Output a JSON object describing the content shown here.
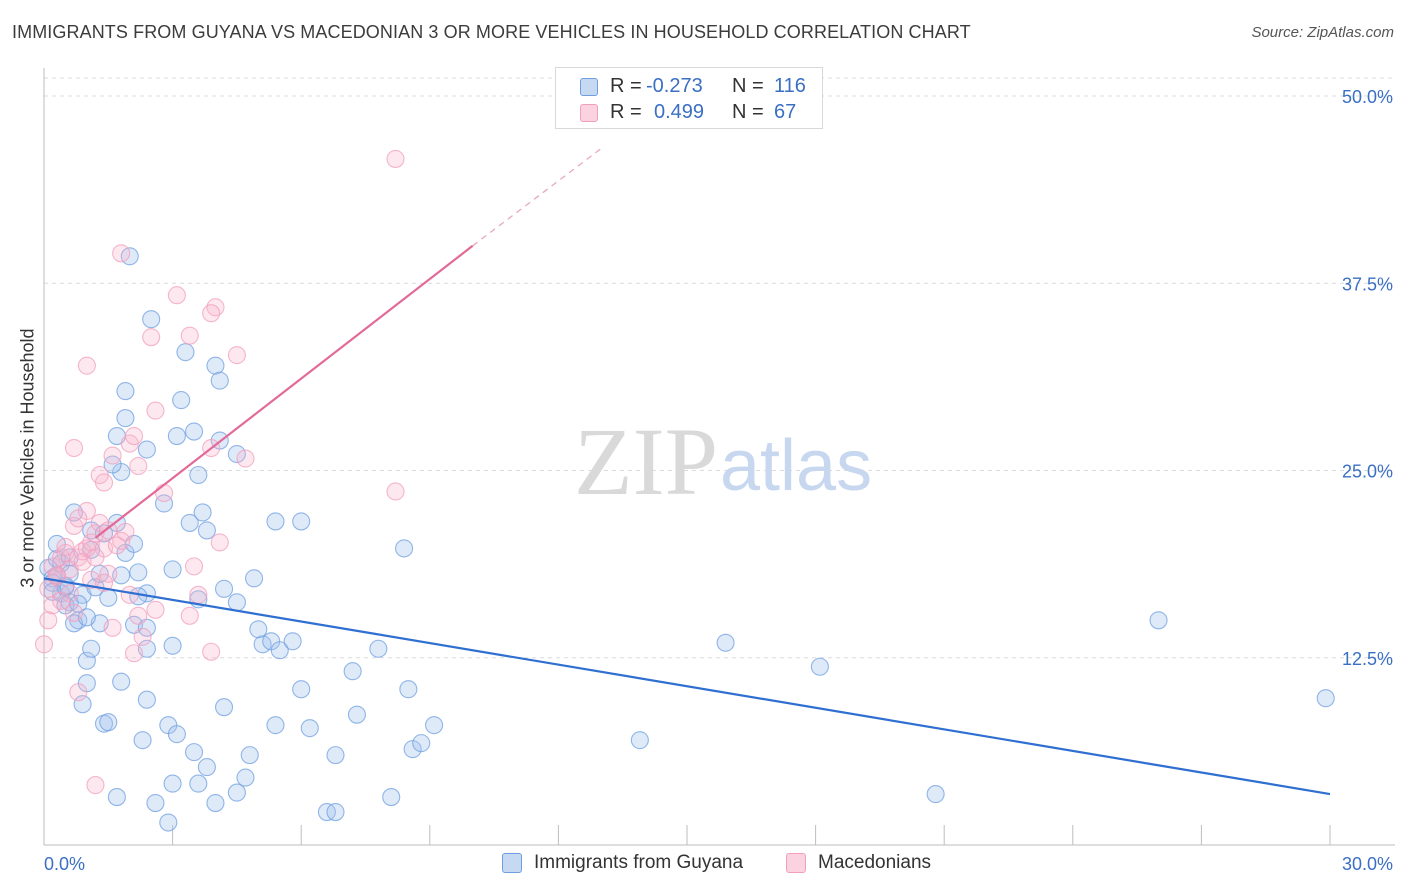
{
  "title": "IMMIGRANTS FROM GUYANA VS MACEDONIAN 3 OR MORE VEHICLES IN HOUSEHOLD CORRELATION CHART",
  "source": "Source: ZipAtlas.com",
  "watermark": {
    "zip": "ZIP",
    "atlas": "atlas"
  },
  "legend": {
    "rows": [
      {
        "r_label": "R =",
        "r_value": "-0.273",
        "n_label": "N =",
        "n_value": "116",
        "color": "#6f9fe0"
      },
      {
        "r_label": "R =",
        "r_value": "0.499",
        "n_label": "N =",
        "n_value": "67",
        "color": "#f19fbd"
      }
    ]
  },
  "bottom_legend": [
    {
      "label": "Immigrants from Guyana",
      "color": "#6f9fe0"
    },
    {
      "label": "Macedonians",
      "color": "#f19fbd"
    }
  ],
  "chart_data": {
    "type": "scatter",
    "title": "IMMIGRANTS FROM GUYANA VS MACEDONIAN 3 OR MORE VEHICLES IN HOUSEHOLD CORRELATION CHART",
    "xlabel": "",
    "ylabel": "3 or more Vehicles in Household",
    "xlim": [
      0,
      30
    ],
    "ylim": [
      0,
      50
    ],
    "x_tick_labels": [
      "0.0%",
      "30.0%"
    ],
    "y_ticks": [
      12.5,
      25.0,
      37.5,
      50.0
    ],
    "y_tick_labels": [
      "12.5%",
      "25.0%",
      "37.5%",
      "50.0%"
    ],
    "grid": true,
    "series": [
      {
        "name": "Immigrants from Guyana",
        "color": "#6f9fe0",
        "trend": {
          "x0": 0,
          "y0": 17.8,
          "x1": 30,
          "y1": 3.4
        },
        "points": [
          [
            0.1,
            18.5
          ],
          [
            0.2,
            17.8
          ],
          [
            0.3,
            18.0
          ],
          [
            0.4,
            16.8
          ],
          [
            0.5,
            17.2
          ],
          [
            0.6,
            16.2
          ],
          [
            0.2,
            17.5
          ],
          [
            0.4,
            18.8
          ],
          [
            0.6,
            18.1
          ],
          [
            0.3,
            19.1
          ],
          [
            0.7,
            22.2
          ],
          [
            0.8,
            15.0
          ],
          [
            0.9,
            16.7
          ],
          [
            0.5,
            16.0
          ],
          [
            0.7,
            14.8
          ],
          [
            1.1,
            21.0
          ],
          [
            1.2,
            17.2
          ],
          [
            1.5,
            16.5
          ],
          [
            1.7,
            21.5
          ],
          [
            1.9,
            19.5
          ],
          [
            2.1,
            20.1
          ],
          [
            2.2,
            18.2
          ],
          [
            2.4,
            16.8
          ],
          [
            1.0,
            12.3
          ],
          [
            1.1,
            13.1
          ],
          [
            1.3,
            14.8
          ],
          [
            1.0,
            10.8
          ],
          [
            1.8,
            10.9
          ],
          [
            0.9,
            9.4
          ],
          [
            1.4,
            8.1
          ],
          [
            1.5,
            8.2
          ],
          [
            1.7,
            27.3
          ],
          [
            1.9,
            28.5
          ],
          [
            1.9,
            30.3
          ],
          [
            1.8,
            24.9
          ],
          [
            1.6,
            25.4
          ],
          [
            2.5,
            35.1
          ],
          [
            2.4,
            26.4
          ],
          [
            2.8,
            22.8
          ],
          [
            2.0,
            39.3
          ],
          [
            3.2,
            29.7
          ],
          [
            3.3,
            32.9
          ],
          [
            3.1,
            27.3
          ],
          [
            3.0,
            18.4
          ],
          [
            3.4,
            21.5
          ],
          [
            3.6,
            24.7
          ],
          [
            3.7,
            22.2
          ],
          [
            3.8,
            21.0
          ],
          [
            4.0,
            32.0
          ],
          [
            4.1,
            31.0
          ],
          [
            4.1,
            27.0
          ],
          [
            3.5,
            27.6
          ],
          [
            4.5,
            26.1
          ],
          [
            4.2,
            17.1
          ],
          [
            4.5,
            16.2
          ],
          [
            4.9,
            17.8
          ],
          [
            5.1,
            13.4
          ],
          [
            5.3,
            13.6
          ],
          [
            5.5,
            13.0
          ],
          [
            5.8,
            13.6
          ],
          [
            5.0,
            14.4
          ],
          [
            5.4,
            21.6
          ],
          [
            6.0,
            21.6
          ],
          [
            2.4,
            13.1
          ],
          [
            2.1,
            14.7
          ],
          [
            2.4,
            14.5
          ],
          [
            3.0,
            13.3
          ],
          [
            3.6,
            16.4
          ],
          [
            4.2,
            9.2
          ],
          [
            2.4,
            9.7
          ],
          [
            2.3,
            7.0
          ],
          [
            2.9,
            8.0
          ],
          [
            3.1,
            7.4
          ],
          [
            3.5,
            6.2
          ],
          [
            3.8,
            5.2
          ],
          [
            3.6,
            4.1
          ],
          [
            3.0,
            4.1
          ],
          [
            2.6,
            2.8
          ],
          [
            1.7,
            3.2
          ],
          [
            2.9,
            1.5
          ],
          [
            4.0,
            2.8
          ],
          [
            4.5,
            3.5
          ],
          [
            4.7,
            4.5
          ],
          [
            4.8,
            6.0
          ],
          [
            5.4,
            8.0
          ],
          [
            6.0,
            10.4
          ],
          [
            6.2,
            7.8
          ],
          [
            6.6,
            2.2
          ],
          [
            6.8,
            2.2
          ],
          [
            6.8,
            6.0
          ],
          [
            7.3,
            8.7
          ],
          [
            7.2,
            11.6
          ],
          [
            7.8,
            13.1
          ],
          [
            8.1,
            3.2
          ],
          [
            8.4,
            19.8
          ],
          [
            8.5,
            10.4
          ],
          [
            8.6,
            6.4
          ],
          [
            8.8,
            6.8
          ],
          [
            9.1,
            8.0
          ],
          [
            15.9,
            13.5
          ],
          [
            13.9,
            7.0
          ],
          [
            18.1,
            11.9
          ],
          [
            20.8,
            3.4
          ],
          [
            26.0,
            15.0
          ],
          [
            29.9,
            9.8
          ],
          [
            0.5,
            17.3
          ],
          [
            0.8,
            16.1
          ],
          [
            1.3,
            18.1
          ],
          [
            0.2,
            16.9
          ],
          [
            1.1,
            19.7
          ],
          [
            0.6,
            19.2
          ],
          [
            1.8,
            18.0
          ],
          [
            2.2,
            16.6
          ],
          [
            1.4,
            20.8
          ],
          [
            1.0,
            15.2
          ],
          [
            0.3,
            20.1
          ]
        ]
      },
      {
        "name": "Macedonians",
        "color": "#f19fbd",
        "trend": {
          "x0": 1.2,
          "y0": 20.5,
          "x1": 10.0,
          "y1": 40.0,
          "dashed_to": {
            "x": 13.0,
            "y": 46.5
          }
        },
        "points": [
          [
            0.0,
            13.4
          ],
          [
            0.1,
            15.0
          ],
          [
            0.1,
            17.1
          ],
          [
            0.2,
            18.6
          ],
          [
            0.3,
            17.9
          ],
          [
            0.4,
            19.2
          ],
          [
            0.5,
            19.5
          ],
          [
            0.6,
            16.8
          ],
          [
            0.6,
            18.4
          ],
          [
            0.7,
            21.3
          ],
          [
            0.8,
            19.2
          ],
          [
            0.9,
            19.6
          ],
          [
            1.0,
            19.8
          ],
          [
            1.1,
            20.2
          ],
          [
            1.2,
            20.8
          ],
          [
            1.3,
            21.5
          ],
          [
            1.4,
            19.8
          ],
          [
            1.5,
            18.1
          ],
          [
            1.7,
            20.0
          ],
          [
            1.8,
            20.3
          ],
          [
            1.9,
            20.9
          ],
          [
            2.0,
            26.8
          ],
          [
            2.1,
            27.3
          ],
          [
            2.2,
            25.3
          ],
          [
            1.3,
            24.7
          ],
          [
            1.4,
            24.2
          ],
          [
            1.6,
            26.0
          ],
          [
            0.7,
            26.5
          ],
          [
            1.0,
            22.3
          ],
          [
            0.8,
            21.8
          ],
          [
            1.8,
            39.5
          ],
          [
            2.5,
            33.9
          ],
          [
            3.1,
            36.7
          ],
          [
            3.4,
            34.0
          ],
          [
            4.0,
            35.9
          ],
          [
            3.9,
            35.5
          ],
          [
            4.5,
            32.7
          ],
          [
            3.9,
            26.5
          ],
          [
            4.7,
            25.8
          ],
          [
            2.6,
            29.0
          ],
          [
            2.8,
            23.5
          ],
          [
            3.5,
            18.6
          ],
          [
            4.1,
            20.2
          ],
          [
            3.6,
            16.7
          ],
          [
            3.9,
            12.9
          ],
          [
            3.4,
            15.3
          ],
          [
            2.6,
            15.7
          ],
          [
            2.2,
            15.3
          ],
          [
            2.0,
            16.7
          ],
          [
            1.6,
            14.5
          ],
          [
            2.1,
            12.8
          ],
          [
            2.3,
            13.9
          ],
          [
            1.4,
            17.5
          ],
          [
            0.7,
            15.5
          ],
          [
            0.8,
            10.2
          ],
          [
            1.2,
            4.0
          ],
          [
            8.2,
            23.6
          ],
          [
            8.2,
            45.8
          ],
          [
            1.0,
            32.0
          ],
          [
            0.4,
            16.3
          ],
          [
            0.5,
            19.9
          ],
          [
            1.1,
            17.7
          ],
          [
            0.9,
            18.9
          ],
          [
            0.2,
            16.0
          ],
          [
            1.5,
            21.0
          ],
          [
            0.3,
            18.0
          ],
          [
            1.2,
            19.2
          ]
        ]
      }
    ]
  }
}
